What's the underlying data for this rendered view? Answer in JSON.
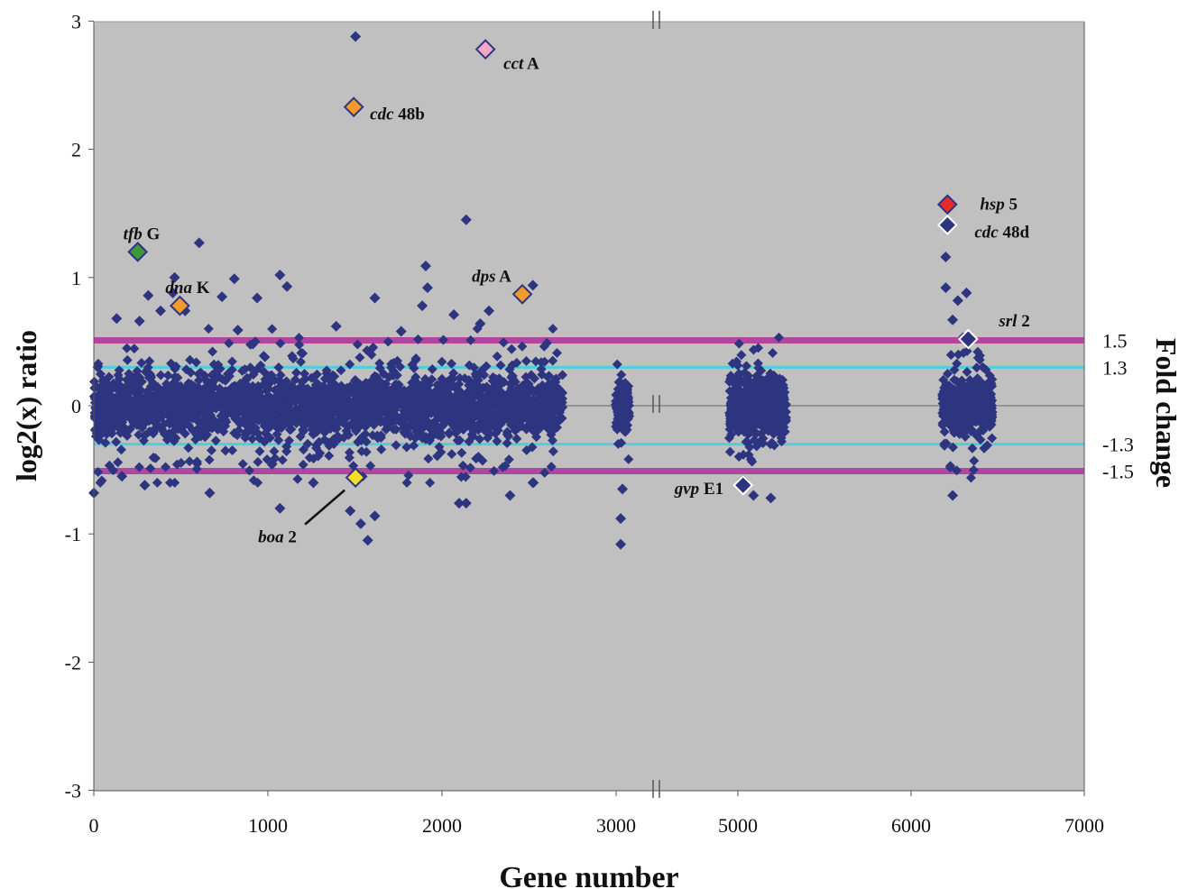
{
  "chart_data": {
    "type": "scatter",
    "title": "",
    "xlabel": "Gene number",
    "ylabel": "log2(x) ratio",
    "y2label": "Fold change",
    "ylim": [
      -3,
      3
    ],
    "x_tick_labels": [
      "0",
      "1000",
      "2000",
      "3000",
      "5000",
      "6000",
      "7000"
    ],
    "y_ticks": [
      3,
      2,
      1,
      0,
      -1,
      -2,
      -3
    ],
    "x_axis_break": "between 3000 and 5000",
    "background_color": "#c0c0c0",
    "point_color": "#2e3580",
    "grid": false,
    "threshold_lines": [
      {
        "label": "1.5",
        "log2": 0.51,
        "color": "#b0479f"
      },
      {
        "label": "1.3",
        "log2": 0.3,
        "color": "#4fcde0"
      },
      {
        "label": "-1.3",
        "log2": -0.3,
        "color": "#4fcde0"
      },
      {
        "label": "-1.5",
        "log2": -0.51,
        "color": "#b0479f"
      }
    ],
    "bulk_clusters": [
      {
        "x_range": [
          0,
          2670
        ],
        "core_spread": 0.25,
        "outer_spread": 0.55
      },
      {
        "x_range": [
          2970,
          3050
        ],
        "core_spread": 0.2,
        "outer_spread": 0.42
      },
      {
        "x_range": [
          4950,
          5280
        ],
        "core_spread": 0.25,
        "outer_spread": 0.5
      },
      {
        "x_range": [
          6180,
          6470
        ],
        "core_spread": 0.2,
        "outer_spread": 0.5
      }
    ],
    "outlier_points": [
      [
        1490,
        2.88
      ],
      [
        2120,
        1.45
      ],
      [
        600,
        1.27
      ],
      [
        460,
        1.0
      ],
      [
        1060,
        1.02
      ],
      [
        1890,
        1.09
      ],
      [
        1900,
        0.92
      ],
      [
        2500,
        0.94
      ],
      [
        1100,
        0.93
      ],
      [
        800,
        0.99
      ],
      [
        2250,
        0.74
      ],
      [
        310,
        0.86
      ],
      [
        730,
        0.85
      ],
      [
        930,
        0.84
      ],
      [
        2050,
        0.71
      ],
      [
        1870,
        0.78
      ],
      [
        1600,
        0.84
      ],
      [
        450,
        0.88
      ],
      [
        520,
        0.74
      ],
      [
        380,
        0.74
      ],
      [
        2200,
        0.64
      ],
      [
        1380,
        0.62
      ],
      [
        1750,
        0.58
      ],
      [
        820,
        0.59
      ],
      [
        130,
        0.68
      ],
      [
        260,
        0.66
      ],
      [
        6200,
        1.16
      ],
      [
        6200,
        0.92
      ],
      [
        6320,
        0.88
      ],
      [
        6240,
        0.67
      ],
      [
        6270,
        0.82
      ],
      [
        0,
        -0.68
      ],
      [
        160,
        -0.55
      ],
      [
        290,
        -0.62
      ],
      [
        660,
        -0.68
      ],
      [
        1060,
        -0.8
      ],
      [
        1520,
        -0.92
      ],
      [
        1560,
        -1.05
      ],
      [
        1600,
        -0.86
      ],
      [
        1460,
        -0.82
      ],
      [
        2080,
        -0.76
      ],
      [
        2120,
        -0.76
      ],
      [
        2370,
        -0.7
      ],
      [
        3000,
        -0.88
      ],
      [
        3000,
        -1.08
      ],
      [
        3010,
        -0.65
      ],
      [
        5090,
        -0.7
      ],
      [
        5190,
        -0.72
      ],
      [
        6240,
        -0.7
      ],
      [
        5030,
        -0.58
      ],
      [
        1250,
        -0.6
      ],
      [
        2500,
        -0.6
      ]
    ],
    "highlighted_genes": [
      {
        "name_italic": "cct",
        "name_suffix": "A",
        "x": 2230,
        "y": 2.78,
        "color": "#f2a6c8"
      },
      {
        "name_italic": "cdc",
        "name_suffix": "48b",
        "x": 1480,
        "y": 2.33,
        "color": "#f39a2c"
      },
      {
        "name_italic": "tfb",
        "name_suffix": "G",
        "x": 250,
        "y": 1.2,
        "color": "#3c9a3a"
      },
      {
        "name_italic": "dna",
        "name_suffix": "K",
        "x": 490,
        "y": 0.78,
        "color": "#f39a2c"
      },
      {
        "name_italic": "dps",
        "name_suffix": "A",
        "x": 2440,
        "y": 0.87,
        "color": "#f39a2c"
      },
      {
        "name_italic": "hsp",
        "name_suffix": "5",
        "x": 6210,
        "y": 1.57,
        "color": "#e52a2a"
      },
      {
        "name_italic": "cdc",
        "name_suffix": "48d",
        "x": 6210,
        "y": 1.41,
        "color": "#2e3580"
      },
      {
        "name_italic": "srl",
        "name_suffix": "2",
        "x": 6330,
        "y": 0.52,
        "color": "#2e3580"
      },
      {
        "name_italic": "gvp",
        "name_suffix": "E1",
        "x": 5030,
        "y": -0.62,
        "color": "#2e3580"
      },
      {
        "name_italic": "boa",
        "name_suffix": "2",
        "x": 1490,
        "y": -0.56,
        "color": "#f6e025"
      }
    ]
  }
}
